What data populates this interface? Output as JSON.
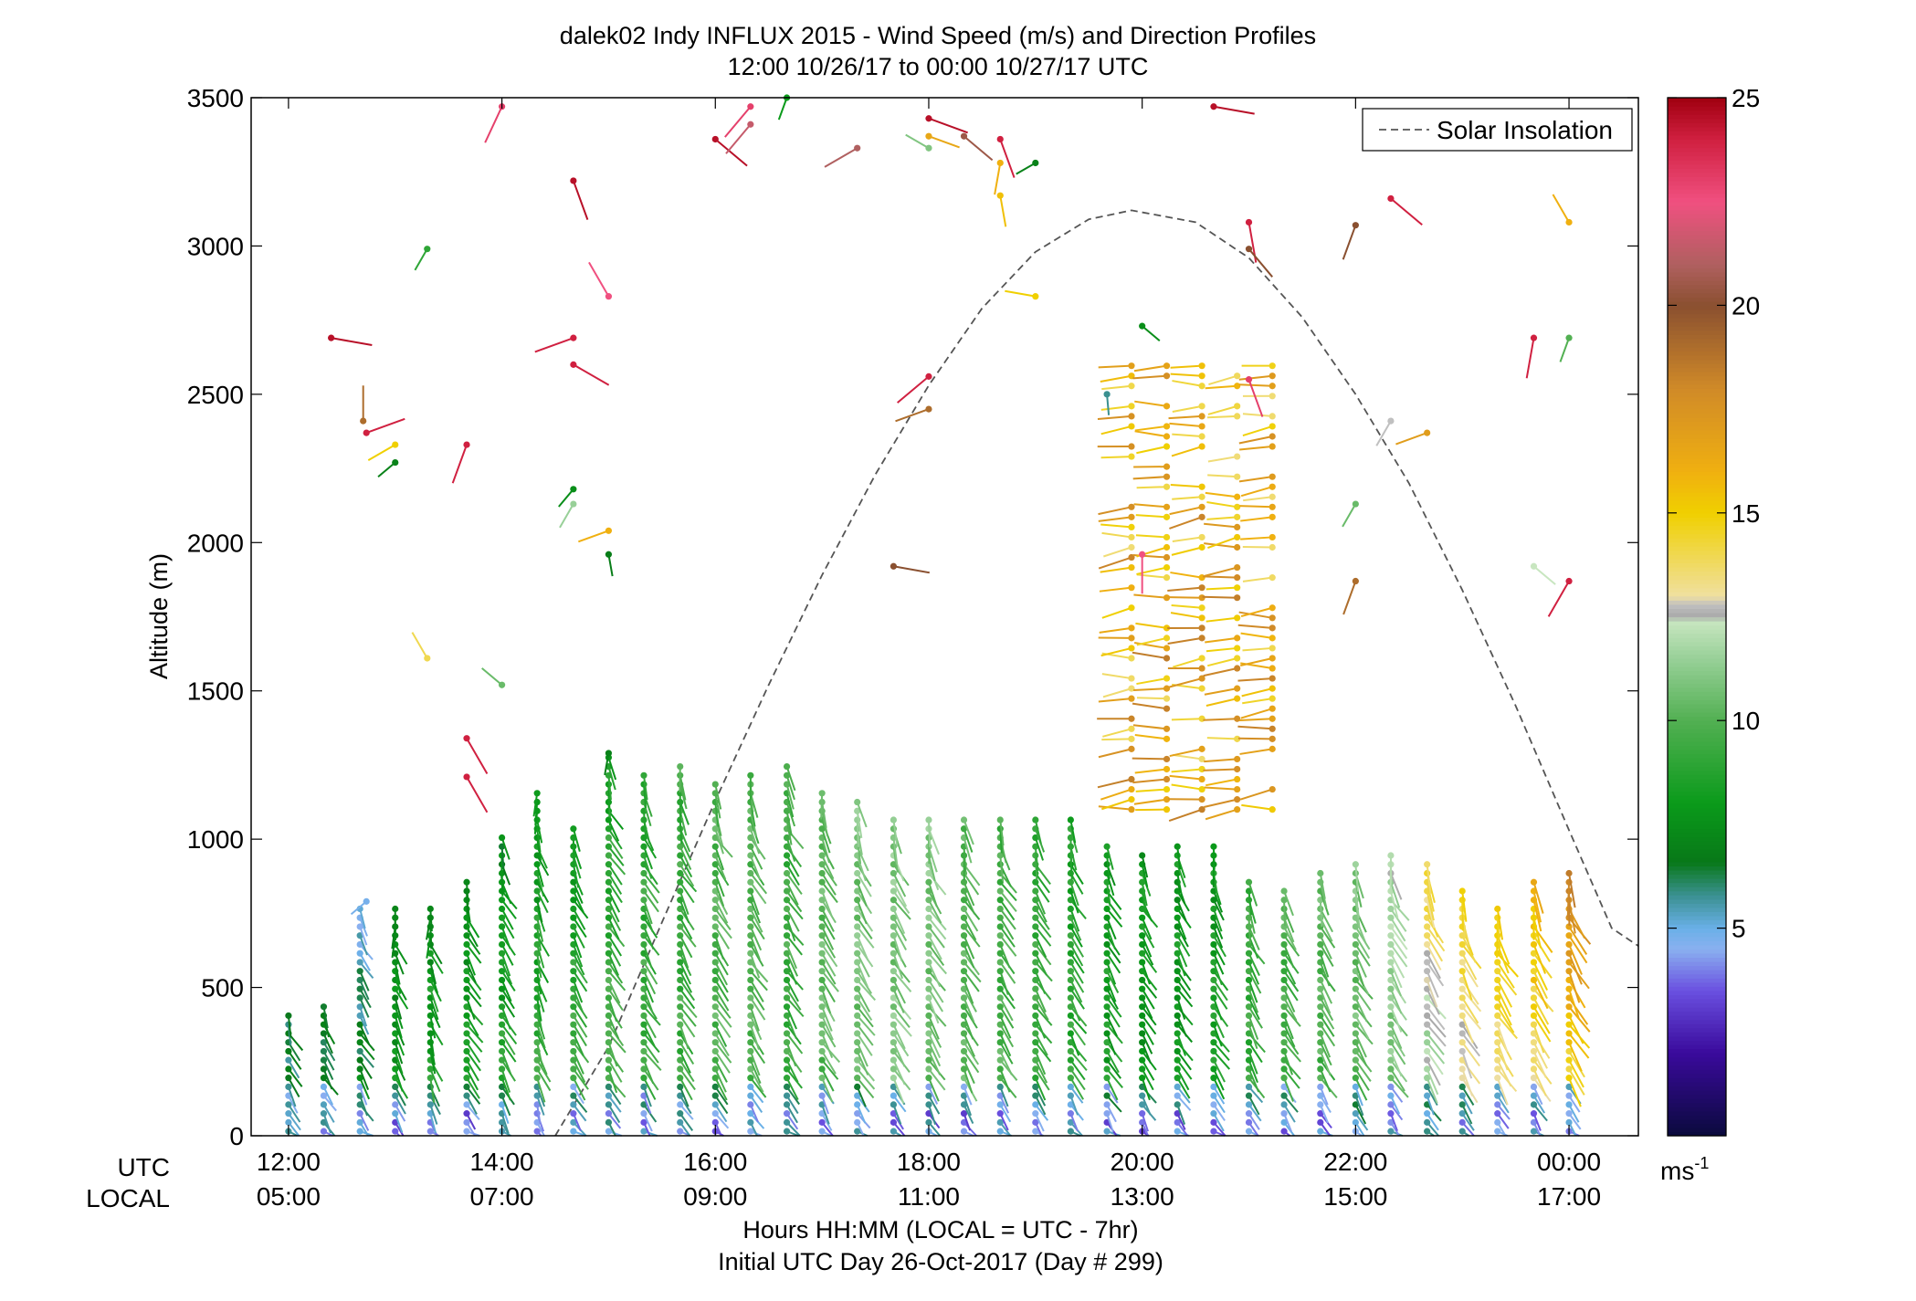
{
  "chart_data": {
    "type": "wind-profile",
    "title": "dalek02 Indy INFLUX 2015 - Wind Speed (m/s) and Direction Profiles",
    "subtitle": "12:00 10/26/17 to 00:00 10/27/17  UTC",
    "ylabel": "Altitude (m)",
    "xlabel": "Hours HH:MM  (LOCAL = UTC - 7hr)",
    "xlabel2": "Initial UTC Day 26-Oct-2017 (Day # 299)",
    "row_label_utc": "UTC",
    "row_label_local": "LOCAL",
    "ylim": [
      0,
      3500
    ],
    "xlim_hours": [
      11.65,
      24.65
    ],
    "y_ticks": [
      0,
      500,
      1000,
      1500,
      2000,
      2500,
      3000,
      3500
    ],
    "y_tick_labels": [
      "0",
      "500",
      "1000",
      "1500",
      "2000",
      "2500",
      "3000",
      "3500"
    ],
    "x_ticks": [
      12,
      14,
      16,
      18,
      20,
      22,
      24
    ],
    "x_tick_labels_utc": [
      "12:00",
      "14:00",
      "16:00",
      "18:00",
      "20:00",
      "22:00",
      "00:00"
    ],
    "x_tick_labels_local": [
      "05:00",
      "07:00",
      "09:00",
      "11:00",
      "13:00",
      "15:00",
      "17:00"
    ],
    "legend": {
      "label": "Solar Insolation",
      "position": "top-right"
    },
    "solar_insolation": {
      "hours": [
        14.5,
        15.0,
        15.5,
        16.0,
        16.5,
        17.0,
        17.5,
        18.0,
        18.5,
        19.0,
        19.5,
        19.9,
        20.5,
        21.0,
        21.5,
        22.0,
        22.5,
        23.0,
        23.5,
        24.0,
        24.4,
        24.65
      ],
      "altitude": [
        0,
        300,
        720,
        1130,
        1520,
        1890,
        2230,
        2530,
        2790,
        2980,
        3090,
        3120,
        3080,
        2960,
        2760,
        2500,
        2200,
        1840,
        1450,
        1030,
        700,
        640
      ]
    },
    "colorbar": {
      "min": 0,
      "max": 25,
      "ticks": [
        5,
        10,
        15,
        20,
        25
      ],
      "tick_labels": [
        "5",
        "10",
        "15",
        "20",
        "25"
      ],
      "unit_label": "ms",
      "unit_exponent": "-1",
      "stops": [
        {
          "v": 0,
          "c": "#0a0a3c"
        },
        {
          "v": 2,
          "c": "#3a0a9c"
        },
        {
          "v": 3.5,
          "c": "#6a50e0"
        },
        {
          "v": 4.5,
          "c": "#8ab0f0"
        },
        {
          "v": 5,
          "c": "#6ab0e8"
        },
        {
          "v": 5.8,
          "c": "#3a9090"
        },
        {
          "v": 6.6,
          "c": "#087818"
        },
        {
          "v": 8,
          "c": "#0a9a1a"
        },
        {
          "v": 10,
          "c": "#52b052"
        },
        {
          "v": 11.5,
          "c": "#98d098"
        },
        {
          "v": 12.4,
          "c": "#c8e6c0"
        },
        {
          "v": 12.5,
          "c": "#a8a8a8"
        },
        {
          "v": 12.8,
          "c": "#c0c0c0"
        },
        {
          "v": 13.0,
          "c": "#f0e0a0"
        },
        {
          "v": 14,
          "c": "#f0d850"
        },
        {
          "v": 15,
          "c": "#f0d000"
        },
        {
          "v": 16,
          "c": "#f0b010"
        },
        {
          "v": 18,
          "c": "#d08a28"
        },
        {
          "v": 20,
          "c": "#8a5030"
        },
        {
          "v": 21,
          "c": "#b06060"
        },
        {
          "v": 22.5,
          "c": "#f05080"
        },
        {
          "v": 24,
          "c": "#d02040"
        },
        {
          "v": 25,
          "c": "#a00010"
        }
      ]
    },
    "profiles": {
      "description": "Vertical wind-barb profiles: each entry gives time (UTC hours), altitude (m), wind speed (m/s) and direction (deg).",
      "columns": [
        {
          "hour": 12.0,
          "top": 430,
          "low_speed": 6.5,
          "high_speed": 6.0,
          "dir": 300
        },
        {
          "hour": 12.33,
          "top": 460,
          "low_speed": 6.8,
          "high_speed": 6.2,
          "dir": 300
        },
        {
          "hour": 12.67,
          "top": 790,
          "low_speed": 7.5,
          "high_speed": 5.0,
          "dir": 300
        },
        {
          "hour": 13.0,
          "top": 790,
          "low_speed": 8.0,
          "high_speed": 7.0,
          "dir": 290
        },
        {
          "hour": 13.33,
          "top": 790,
          "low_speed": 9.0,
          "high_speed": 7.5,
          "dir": 290
        },
        {
          "hour": 13.67,
          "top": 870,
          "low_speed": 9.0,
          "high_speed": 7.0,
          "dir": 300
        },
        {
          "hour": 14.0,
          "top": 1020,
          "low_speed": 9.5,
          "high_speed": 7.0,
          "dir": 300
        },
        {
          "hour": 14.33,
          "top": 1170,
          "low_speed": 10.0,
          "high_speed": 7.5,
          "dir": 290
        },
        {
          "hour": 14.67,
          "top": 1050,
          "low_speed": 10.0,
          "high_speed": 8.0,
          "dir": 300
        },
        {
          "hour": 15.0,
          "top": 1290,
          "low_speed": 10.0,
          "high_speed": 8.5,
          "dir": 300
        },
        {
          "hour": 15.33,
          "top": 1220,
          "low_speed": 9.5,
          "high_speed": 9.0,
          "dir": 300
        },
        {
          "hour": 15.67,
          "top": 1250,
          "low_speed": 9.5,
          "high_speed": 9.5,
          "dir": 300
        },
        {
          "hour": 16.0,
          "top": 1210,
          "low_speed": 10.0,
          "high_speed": 10.0,
          "dir": 300
        },
        {
          "hour": 16.33,
          "top": 1220,
          "low_speed": 10.0,
          "high_speed": 10.0,
          "dir": 300
        },
        {
          "hour": 16.67,
          "top": 1250,
          "low_speed": 9.5,
          "high_speed": 9.5,
          "dir": 300
        },
        {
          "hour": 17.0,
          "top": 1170,
          "low_speed": 10.0,
          "high_speed": 10.5,
          "dir": 300
        },
        {
          "hour": 17.33,
          "top": 1150,
          "low_speed": 10.5,
          "high_speed": 11.0,
          "dir": 300
        },
        {
          "hour": 17.67,
          "top": 1080,
          "low_speed": 11.0,
          "high_speed": 11.0,
          "dir": 300
        },
        {
          "hour": 18.0,
          "top": 1070,
          "low_speed": 10.5,
          "high_speed": 11.0,
          "dir": 300
        },
        {
          "hour": 18.33,
          "top": 1090,
          "low_speed": 10.5,
          "high_speed": 10.0,
          "dir": 300
        },
        {
          "hour": 18.67,
          "top": 1080,
          "low_speed": 10.0,
          "high_speed": 9.5,
          "dir": 300
        },
        {
          "hour": 19.0,
          "top": 1090,
          "low_speed": 9.5,
          "high_speed": 9.0,
          "dir": 300
        },
        {
          "hour": 19.33,
          "top": 1080,
          "low_speed": 9.0,
          "high_speed": 8.5,
          "dir": 300
        },
        {
          "hour": 19.67,
          "top": 990,
          "low_speed": 8.5,
          "high_speed": 8.0,
          "dir": 300
        },
        {
          "hour": 20.0,
          "top": 970,
          "low_speed": 8.0,
          "high_speed": 8.0,
          "dir": 300
        },
        {
          "hour": 20.33,
          "top": 980,
          "low_speed": 8.0,
          "high_speed": 8.0,
          "dir": 300
        },
        {
          "hour": 20.67,
          "top": 1000,
          "low_speed": 8.5,
          "high_speed": 8.0,
          "dir": 300
        },
        {
          "hour": 21.0,
          "top": 860,
          "low_speed": 9.0,
          "high_speed": 9.5,
          "dir": 300
        },
        {
          "hour": 21.33,
          "top": 840,
          "low_speed": 9.0,
          "high_speed": 10.0,
          "dir": 300
        },
        {
          "hour": 21.67,
          "top": 900,
          "low_speed": 9.5,
          "high_speed": 10.5,
          "dir": 300
        },
        {
          "hour": 22.0,
          "top": 920,
          "low_speed": 10.0,
          "high_speed": 11.0,
          "dir": 300
        },
        {
          "hour": 22.33,
          "top": 960,
          "low_speed": 10.5,
          "high_speed": 12.0,
          "dir": 300
        },
        {
          "hour": 22.67,
          "top": 920,
          "low_speed": 11.0,
          "high_speed": 14.0,
          "dir": 300
        },
        {
          "hour": 23.0,
          "top": 840,
          "low_speed": 11.5,
          "high_speed": 15.0,
          "dir": 300
        },
        {
          "hour": 23.33,
          "top": 780,
          "low_speed": 12.5,
          "high_speed": 15.5,
          "dir": 300
        },
        {
          "hour": 23.67,
          "top": 860,
          "low_speed": 13.0,
          "high_speed": 16.0,
          "dir": 300
        },
        {
          "hour": 24.0,
          "top": 900,
          "low_speed": 13.5,
          "high_speed": 18.0,
          "dir": 300
        }
      ]
    },
    "upper_cluster": {
      "description": "Dense column of higher-speed barbs aloft between ~20:00 and 21:30 UTC, 1100–2600 m, speeds ~14–18 m/s.",
      "hour_range": [
        19.9,
        21.4
      ],
      "alt_range": [
        1100,
        2600
      ],
      "speed_range": [
        13.5,
        18.5
      ]
    },
    "scattered_points": [
      {
        "hour": 12.4,
        "alt": 2690,
        "speed": 24.5,
        "dir": 350
      },
      {
        "hour": 12.7,
        "alt": 2410,
        "speed": 19.0,
        "dir": 90
      },
      {
        "hour": 12.73,
        "alt": 2370,
        "speed": 24.0,
        "dir": 20
      },
      {
        "hour": 13.0,
        "alt": 2330,
        "speed": 15.0,
        "dir": 210
      },
      {
        "hour": 13.0,
        "alt": 2270,
        "speed": 7.0,
        "dir": 220
      },
      {
        "hour": 13.3,
        "alt": 2990,
        "speed": 9.0,
        "dir": 240
      },
      {
        "hour": 13.67,
        "alt": 2330,
        "speed": 24.0,
        "dir": 250
      },
      {
        "hour": 14.0,
        "alt": 3470,
        "speed": 23.0,
        "dir": 245
      },
      {
        "hour": 14.67,
        "alt": 3220,
        "speed": 24.5,
        "dir": 290
      },
      {
        "hour": 14.67,
        "alt": 2690,
        "speed": 24.0,
        "dir": 200
      },
      {
        "hour": 14.67,
        "alt": 2600,
        "speed": 24.0,
        "dir": 330
      },
      {
        "hour": 14.67,
        "alt": 2180,
        "speed": 7.5,
        "dir": 230
      },
      {
        "hour": 14.67,
        "alt": 2130,
        "speed": 11.5,
        "dir": 240
      },
      {
        "hour": 15.0,
        "alt": 2040,
        "speed": 16.0,
        "dir": 200
      },
      {
        "hour": 15.0,
        "alt": 1960,
        "speed": 6.8,
        "dir": 280
      },
      {
        "hour": 15.0,
        "alt": 1290,
        "speed": 7.0,
        "dir": 260
      },
      {
        "hour": 15.0,
        "alt": 2830,
        "speed": 22.5,
        "dir": 120
      },
      {
        "hour": 16.0,
        "alt": 3360,
        "speed": 24.5,
        "dir": 320
      },
      {
        "hour": 16.33,
        "alt": 3470,
        "speed": 23.0,
        "dir": 230
      },
      {
        "hour": 16.33,
        "alt": 3410,
        "speed": 21.5,
        "dir": 230
      },
      {
        "hour": 16.67,
        "alt": 3500,
        "speed": 8.0,
        "dir": 250
      },
      {
        "hour": 17.33,
        "alt": 3330,
        "speed": 21.0,
        "dir": 210
      },
      {
        "hour": 17.67,
        "alt": 1920,
        "speed": 20.0,
        "dir": 350
      },
      {
        "hour": 18.0,
        "alt": 3430,
        "speed": 24.5,
        "dir": 340
      },
      {
        "hour": 18.0,
        "alt": 3370,
        "speed": 16.5,
        "dir": 340
      },
      {
        "hour": 18.0,
        "alt": 3330,
        "speed": 11.0,
        "dir": 150
      },
      {
        "hour": 18.0,
        "alt": 2450,
        "speed": 19.0,
        "dir": 200
      },
      {
        "hour": 18.0,
        "alt": 2560,
        "speed": 24.0,
        "dir": 220
      },
      {
        "hour": 18.33,
        "alt": 3370,
        "speed": 20.5,
        "dir": 320
      },
      {
        "hour": 18.67,
        "alt": 3360,
        "speed": 24.0,
        "dir": 290
      },
      {
        "hour": 18.67,
        "alt": 3280,
        "speed": 16.0,
        "dir": 260
      },
      {
        "hour": 18.67,
        "alt": 3170,
        "speed": 15.5,
        "dir": 280
      },
      {
        "hour": 19.0,
        "alt": 3280,
        "speed": 7.0,
        "dir": 210
      },
      {
        "hour": 19.0,
        "alt": 2830,
        "speed": 15.0,
        "dir": 170
      },
      {
        "hour": 19.67,
        "alt": 2500,
        "speed": 5.8,
        "dir": 275
      },
      {
        "hour": 20.0,
        "alt": 2730,
        "speed": 7.5,
        "dir": 320
      },
      {
        "hour": 20.67,
        "alt": 3470,
        "speed": 24.5,
        "dir": 350
      },
      {
        "hour": 21.0,
        "alt": 3080,
        "speed": 24.0,
        "dir": 280
      },
      {
        "hour": 21.0,
        "alt": 2990,
        "speed": 20.0,
        "dir": 310
      },
      {
        "hour": 21.0,
        "alt": 2550,
        "speed": 23.0,
        "dir": 290
      },
      {
        "hour": 22.0,
        "alt": 3070,
        "speed": 20.0,
        "dir": 250
      },
      {
        "hour": 22.33,
        "alt": 3160,
        "speed": 24.0,
        "dir": 320
      },
      {
        "hour": 22.33,
        "alt": 2410,
        "speed": 12.8,
        "dir": 240
      },
      {
        "hour": 22.67,
        "alt": 2370,
        "speed": 17.0,
        "dir": 200
      },
      {
        "hour": 22.0,
        "alt": 2130,
        "speed": 10.5,
        "dir": 240
      },
      {
        "hour": 22.0,
        "alt": 1870,
        "speed": 19.0,
        "dir": 250
      },
      {
        "hour": 23.67,
        "alt": 2690,
        "speed": 24.0,
        "dir": 260
      },
      {
        "hour": 24.0,
        "alt": 2690,
        "speed": 10.0,
        "dir": 250
      },
      {
        "hour": 24.0,
        "alt": 3080,
        "speed": 16.0,
        "dir": 120
      },
      {
        "hour": 24.0,
        "alt": 1870,
        "speed": 24.0,
        "dir": 240
      },
      {
        "hour": 23.67,
        "alt": 1920,
        "speed": 12.4,
        "dir": 320
      },
      {
        "hour": 20.0,
        "alt": 1960,
        "speed": 22.5,
        "dir": 270
      },
      {
        "hour": 13.3,
        "alt": 1610,
        "speed": 14.0,
        "dir": 120
      },
      {
        "hour": 14.0,
        "alt": 1520,
        "speed": 10.5,
        "dir": 140
      },
      {
        "hour": 13.67,
        "alt": 1340,
        "speed": 24.0,
        "dir": 300
      },
      {
        "hour": 13.67,
        "alt": 1210,
        "speed": 24.0,
        "dir": 300
      },
      {
        "hour": 12.73,
        "alt": 790,
        "speed": 4.8,
        "dir": 220
      }
    ]
  }
}
